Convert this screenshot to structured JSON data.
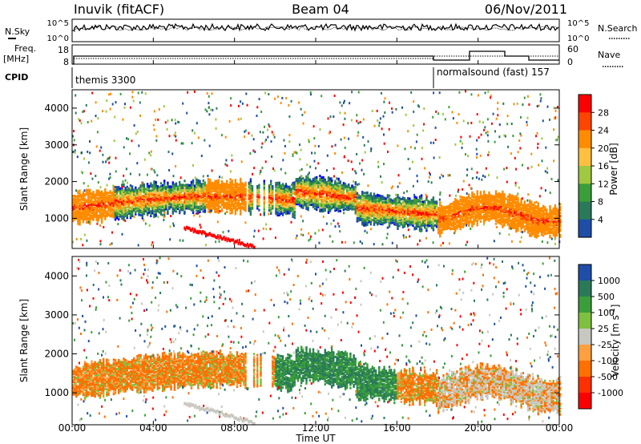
{
  "header": {
    "station": "Inuvik (fitACF)",
    "beam": "Beam 04",
    "date": "06/Nov/2011"
  },
  "strip_panels": {
    "noise_left_label": "N.Sky",
    "noise_right_label": "N.Search",
    "noise_ticks_left": [
      "10^5",
      "10^0"
    ],
    "noise_ticks_right": [
      "10^5",
      "10^0"
    ],
    "freq_label": "Freq.",
    "freq_unit": "[MHz]",
    "freq_ticks": [
      "18",
      "8"
    ],
    "nave_label": "Nave",
    "nave_ticks": [
      "60",
      "0"
    ],
    "cpid_label": "CPID",
    "cpid_modes": [
      {
        "name": "themis 3300",
        "start": "00:00"
      },
      {
        "name": "normalsound (fast) 157",
        "start": "18:00"
      }
    ]
  },
  "chart_data": [
    {
      "type": "heatmap",
      "title": "",
      "xlabel": "",
      "ylabel": "Slant Range [km]",
      "x_ticks": [
        "00:00",
        "04:00",
        "08:00",
        "12:00",
        "16:00",
        "20:00",
        "00:00"
      ],
      "y_ticks": [
        "1000",
        "2000",
        "3000",
        "4000"
      ],
      "ylim": [
        180,
        4500
      ],
      "colorbar": {
        "label": "Power [dB]",
        "ticks": [
          "28",
          "24",
          "20",
          "16",
          "12",
          "8",
          "4"
        ],
        "colors": [
          "#ff0000",
          "#ff4400",
          "#ff8c00",
          "#ffc040",
          "#a0c840",
          "#3a9e3a",
          "#2a7a5a",
          "#1e4ea8",
          "#0000ff"
        ]
      },
      "data_summary": {
        "main_band_km": [
          800,
          1800
        ],
        "peak_power_db": 28,
        "strongest_periods": [
          "00:00-02:00",
          "07:00-08:30",
          "18:00-24:00"
        ]
      }
    },
    {
      "type": "heatmap",
      "title": "",
      "xlabel": "Time UT",
      "ylabel": "Slant Range [km]",
      "x_ticks": [
        "00:00",
        "04:00",
        "08:00",
        "12:00",
        "16:00",
        "20:00",
        "00:00"
      ],
      "y_ticks": [
        "1000",
        "2000",
        "3000",
        "4000"
      ],
      "ylim": [
        180,
        4500
      ],
      "colorbar": {
        "label": "Velocity [m s-1]",
        "label_main": "Velocity [m s",
        "label_sup": "-1",
        "label_end": "]",
        "ticks": [
          "1000",
          "500",
          "100",
          "25",
          "-25",
          "-100",
          "-500",
          "-1000"
        ],
        "colors": [
          "#1e4ea8",
          "#2a7a5a",
          "#3a9e3a",
          "#80c040",
          "#c8c8c0",
          "#ffa040",
          "#ff7000",
          "#ff3000",
          "#ff0000"
        ]
      },
      "data_summary": {
        "main_band_km": [
          800,
          1800
        ],
        "ground_scatter_color": "gray"
      }
    }
  ],
  "colors": {
    "frame": "#000000",
    "power_red": "#ff0000",
    "power_orange": "#ff8c00",
    "power_green": "#3a9e3a",
    "power_blue": "#1e4ea8",
    "velocity_gray": "#c8c8c0",
    "velocity_orange": "#ff8c00",
    "velocity_green": "#3a9e3a"
  }
}
